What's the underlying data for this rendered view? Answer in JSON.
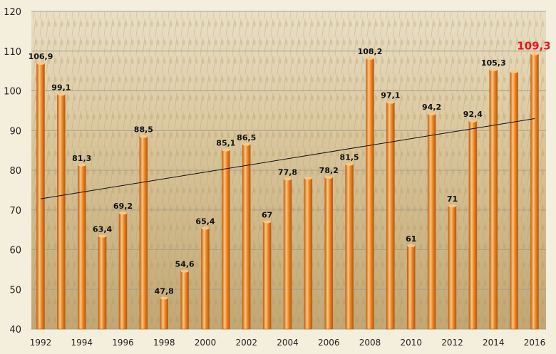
{
  "chart_data": {
    "type": "bar",
    "title": "",
    "xlabel": "",
    "ylabel": "",
    "ylim": [
      40,
      120
    ],
    "yticks": [
      40,
      50,
      60,
      70,
      80,
      90,
      100,
      110,
      120
    ],
    "grid": true,
    "x": [
      1992,
      1993,
      1994,
      1995,
      1996,
      1997,
      1998,
      1999,
      2000,
      2001,
      2002,
      2003,
      2004,
      2005,
      2006,
      2007,
      2008,
      2009,
      2010,
      2011,
      2012,
      2013,
      2014,
      2015,
      2016
    ],
    "xtick_labels": [
      "1992",
      "1994",
      "1996",
      "1998",
      "2000",
      "2002",
      "2004",
      "2006",
      "2008",
      "2010",
      "2012",
      "2014",
      "2016"
    ],
    "values": [
      106.9,
      99.1,
      81.3,
      63.4,
      69.2,
      88.5,
      47.8,
      54.6,
      65.4,
      85.1,
      86.5,
      67,
      77.8,
      78,
      78.2,
      81.5,
      108.2,
      97.1,
      61,
      94.2,
      71,
      92.4,
      105.3,
      104.8,
      109.3
    ],
    "data_labels": [
      "106,9",
      "99,1",
      "81,3",
      "63,4",
      "69,2",
      "88,5",
      "47,8",
      "54,6",
      "65,4",
      "85,1",
      "86,5",
      "67",
      "77,8",
      "",
      "78,2",
      "81,5",
      "108,2",
      "97,1",
      "61",
      "94,2",
      "71",
      "92,4",
      "105,3",
      "",
      "109,3"
    ],
    "highlight_index": 24,
    "trendline": {
      "from": [
        1992,
        72.8
      ],
      "to": [
        2016,
        93.0
      ]
    },
    "colors": {
      "bar": "#f08c2a",
      "bar_dark": "#c5600c",
      "bar_light": "#fbc784",
      "highlight_label": "#e8141c",
      "trend": "#111111",
      "grid": "#a8a08a",
      "background": "#d8c7a0"
    }
  }
}
